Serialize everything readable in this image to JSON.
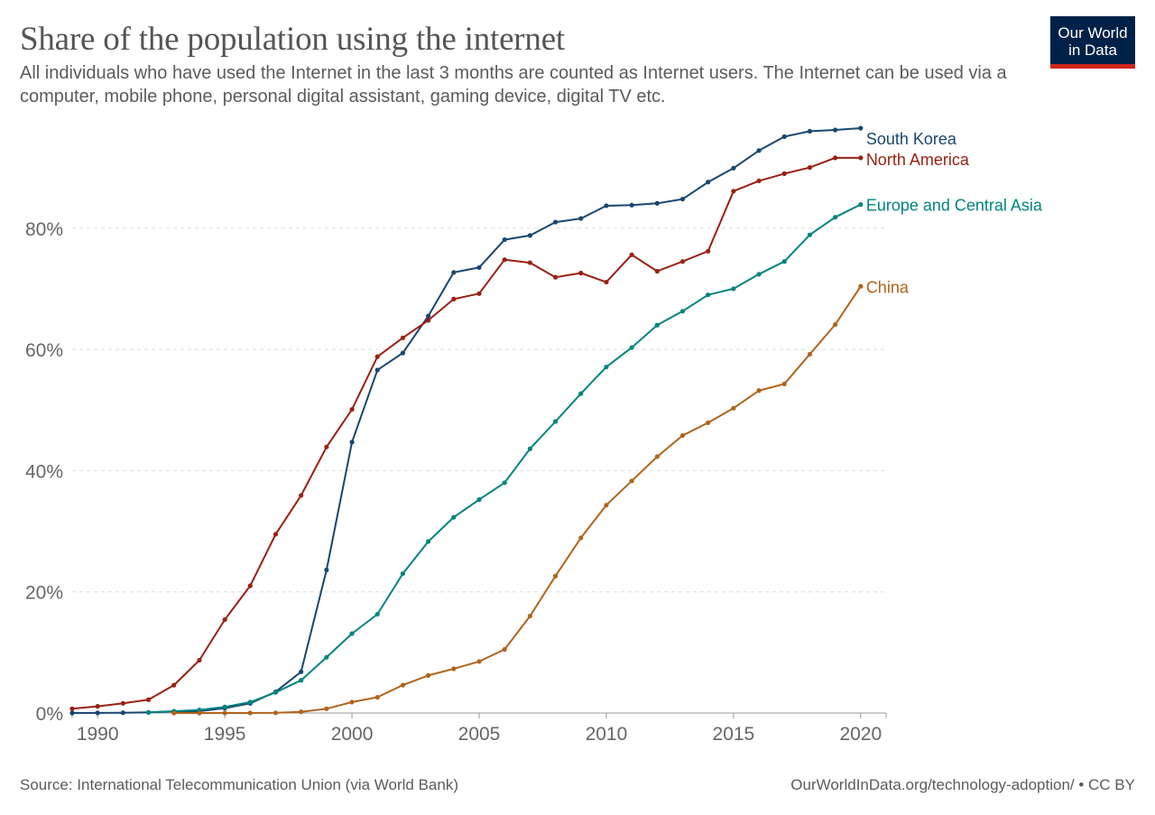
{
  "header": {
    "title": "Share of the population using the internet",
    "subtitle": "All individuals who have used the Internet in the last 3 months are counted as Internet users. The Internet can be used via a computer, mobile phone, personal digital assistant, gaming device, digital TV etc."
  },
  "logo": {
    "line1": "Our World",
    "line2": "in Data",
    "bg_color": "#002147",
    "accent_color": "#ce261e"
  },
  "footer": {
    "source": "Source: International Telecommunication Union (via World Bank)",
    "credit": "OurWorldInData.org/technology-adoption/ • CC BY"
  },
  "chart_data": {
    "type": "line",
    "title": "Share of the population using the internet",
    "xlim": [
      1989,
      2021
    ],
    "ylim": [
      0,
      96
    ],
    "x_ticks": [
      1990,
      1995,
      2000,
      2005,
      2010,
      2015,
      2020
    ],
    "y_ticks": [
      0,
      20,
      40,
      60,
      80
    ],
    "y_tick_labels": [
      "0%",
      "20%",
      "40%",
      "60%",
      "80%"
    ],
    "grid": "horizontal dashed",
    "legend": "labels at line ends (right)",
    "series": [
      {
        "name": "South Korea",
        "color": "#18466e",
        "x": [
          1989,
          1990,
          1991,
          1992,
          1993,
          1994,
          1995,
          1996,
          1997,
          1998,
          1999,
          2000,
          2001,
          2002,
          2003,
          2004,
          2005,
          2006,
          2007,
          2008,
          2009,
          2010,
          2011,
          2012,
          2013,
          2014,
          2015,
          2016,
          2017,
          2018,
          2019,
          2020
        ],
        "y": [
          0.0,
          0.02,
          0.05,
          0.1,
          0.25,
          0.3,
          0.8,
          1.6,
          3.5,
          6.8,
          23.6,
          44.7,
          56.6,
          59.4,
          65.5,
          72.7,
          73.5,
          78.1,
          78.8,
          81.0,
          81.6,
          83.7,
          83.8,
          84.1,
          84.8,
          87.6,
          89.9,
          92.8,
          95.1,
          96.0,
          96.2,
          96.5
        ]
      },
      {
        "name": "North America",
        "color": "#9a2013",
        "x": [
          1989,
          1990,
          1991,
          1992,
          1993,
          1994,
          1995,
          1996,
          1997,
          1998,
          1999,
          2000,
          2001,
          2002,
          2003,
          2004,
          2005,
          2006,
          2007,
          2008,
          2009,
          2010,
          2011,
          2012,
          2013,
          2014,
          2015,
          2016,
          2017,
          2018,
          2019,
          2020
        ],
        "y": [
          0.7,
          1.1,
          1.6,
          2.2,
          4.6,
          8.7,
          15.4,
          21.0,
          29.5,
          35.9,
          43.9,
          50.1,
          58.8,
          61.9,
          64.8,
          68.3,
          69.2,
          74.8,
          74.3,
          71.9,
          72.6,
          71.1,
          75.6,
          72.9,
          74.5,
          76.2,
          86.1,
          87.8,
          89.0,
          90.0,
          91.6,
          91.6
        ]
      },
      {
        "name": "Europe and Central Asia",
        "color": "#00847e",
        "x": [
          1992,
          1993,
          1994,
          1995,
          1996,
          1997,
          1998,
          1999,
          2000,
          2001,
          2002,
          2003,
          2004,
          2005,
          2006,
          2007,
          2008,
          2009,
          2010,
          2011,
          2012,
          2013,
          2014,
          2015,
          2016,
          2017,
          2018,
          2019,
          2020
        ],
        "y": [
          0.1,
          0.3,
          0.5,
          1.0,
          1.8,
          3.4,
          5.4,
          9.2,
          13.1,
          16.3,
          23.0,
          28.3,
          32.3,
          35.2,
          38.0,
          43.6,
          48.1,
          52.7,
          57.1,
          60.3,
          64.0,
          66.3,
          69.0,
          70.0,
          72.4,
          74.5,
          78.9,
          81.8,
          83.9
        ]
      },
      {
        "name": "China",
        "color": "#b0641c",
        "x": [
          1993,
          1994,
          1995,
          1996,
          1997,
          1998,
          1999,
          2000,
          2001,
          2002,
          2003,
          2004,
          2005,
          2006,
          2007,
          2008,
          2009,
          2010,
          2011,
          2012,
          2013,
          2014,
          2015,
          2016,
          2017,
          2018,
          2019,
          2020
        ],
        "y": [
          0.0,
          0.0,
          0.0,
          0.0,
          0.03,
          0.2,
          0.7,
          1.8,
          2.6,
          4.6,
          6.2,
          7.3,
          8.5,
          10.5,
          16.0,
          22.6,
          28.9,
          34.3,
          38.3,
          42.3,
          45.8,
          47.9,
          50.3,
          53.2,
          54.3,
          59.2,
          64.1,
          70.4
        ]
      }
    ]
  }
}
